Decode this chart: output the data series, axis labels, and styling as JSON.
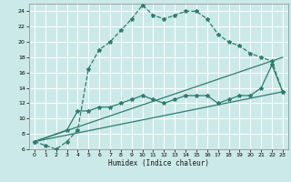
{
  "title": "",
  "xlabel": "Humidex (Indice chaleur)",
  "background_color": "#cce9e9",
  "grid_color": "#ffffff",
  "line_color": "#2d7d6e",
  "xlim": [
    -0.5,
    23.5
  ],
  "ylim": [
    6,
    25
  ],
  "xticks": [
    0,
    1,
    2,
    3,
    4,
    5,
    6,
    7,
    8,
    9,
    10,
    11,
    12,
    13,
    14,
    15,
    16,
    17,
    18,
    19,
    20,
    21,
    22,
    23
  ],
  "yticks": [
    6,
    8,
    10,
    12,
    14,
    16,
    18,
    20,
    22,
    24
  ],
  "line1_x": [
    0,
    1,
    2,
    3,
    4,
    5,
    6,
    7,
    8,
    9,
    10,
    11,
    12,
    13,
    14,
    15,
    16,
    17,
    18,
    19,
    20,
    21,
    22,
    23
  ],
  "line1_y": [
    7.0,
    6.5,
    6.0,
    7.0,
    8.5,
    16.5,
    19.0,
    20.0,
    21.5,
    23.0,
    24.8,
    23.5,
    23.0,
    23.5,
    24.0,
    24.0,
    23.0,
    21.0,
    20.0,
    19.5,
    18.5,
    18.0,
    17.5,
    13.5
  ],
  "line2_x": [
    0,
    3,
    4,
    5,
    6,
    7,
    8,
    9,
    10,
    11,
    12,
    13,
    14,
    15,
    16,
    17,
    18,
    19,
    20,
    21,
    22,
    23
  ],
  "line2_y": [
    7.0,
    8.5,
    11.0,
    11.0,
    11.5,
    11.5,
    12.0,
    12.5,
    13.0,
    12.5,
    12.0,
    12.5,
    13.0,
    13.0,
    13.0,
    12.0,
    12.5,
    13.0,
    13.0,
    14.0,
    17.0,
    13.5
  ],
  "line3_x": [
    0,
    23
  ],
  "line3_y": [
    7.0,
    13.5
  ],
  "line4_x": [
    0,
    23
  ],
  "line4_y": [
    7.0,
    18.0
  ],
  "marker": "*",
  "marker_size": 3,
  "line_width": 0.9
}
